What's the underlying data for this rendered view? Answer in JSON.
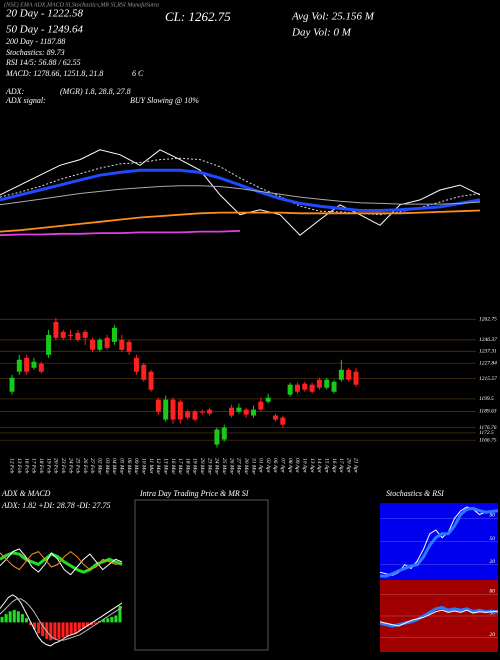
{
  "header": {
    "top_line": "(NSE) EMA ADX,MACD SI,Stochastics,MR SI,RSI MunafaSutra",
    "ema20": "20 Day - 1222.58",
    "ema50": "50 Day - 1249.64",
    "ema200": "200 Day - 1187.88",
    "stoch": "Stochastics: 89.73",
    "rsi": "RSI 14/5: 56.88 / 62.55",
    "macd": "MACD: 1278.66, 1251.8, 21.8",
    "macd_signal": "6 C",
    "cl": "CL: 1262.75",
    "avg_vol": "Avg Vol: 25.156  M",
    "day_vol": "Day Vol: 0  M",
    "adx_label": "ADX:",
    "adx_values": "(MGR) 1.8, 28.8, 27.8",
    "adx_signal_label": "ADX  signal:",
    "adx_signal": "BUY Slowing @ 10%"
  },
  "chart_data": [
    {
      "type": "line",
      "ylim": [
        1150,
        1320
      ],
      "series": [
        {
          "color": "#ffffff",
          "style": "normal",
          "values": [
            1228,
            1242,
            1256,
            1270,
            1278,
            1292,
            1285,
            1270,
            1292,
            1278,
            1263,
            1228,
            1200,
            1207,
            1200,
            1171,
            1193,
            1214,
            1200,
            1185,
            1214,
            1221,
            1235,
            1242,
            1228
          ]
        },
        {
          "color": "#dddddd",
          "style": "dotted",
          "values": [
            1225,
            1232,
            1240,
            1250,
            1258,
            1266,
            1272,
            1274,
            1278,
            1280,
            1278,
            1268,
            1252,
            1238,
            1226,
            1212,
            1205,
            1204,
            1202,
            1200,
            1204,
            1210,
            1218,
            1226,
            1230
          ]
        },
        {
          "color": "#1e4bff",
          "style": "thick",
          "values": [
            1221,
            1228,
            1235,
            1242,
            1249,
            1256,
            1260,
            1263,
            1263,
            1263,
            1260,
            1252,
            1242,
            1232,
            1223,
            1216,
            1212,
            1209,
            1206,
            1206,
            1207,
            1209,
            1211,
            1216,
            1221
          ]
        },
        {
          "color": "#aaaaaa",
          "style": "normal",
          "values": [
            1214,
            1218,
            1222,
            1226,
            1230,
            1233,
            1236,
            1238,
            1240,
            1241,
            1241,
            1240,
            1237,
            1233,
            1229,
            1225,
            1222,
            1219,
            1217,
            1216,
            1215,
            1215,
            1215,
            1216,
            1218
          ]
        },
        {
          "color": "#ff8c1a",
          "style": "medium",
          "values": [
            1176,
            1178,
            1181,
            1184,
            1187,
            1190,
            1193,
            1196,
            1198,
            1200,
            1202,
            1203,
            1203,
            1203,
            1203,
            1202,
            1202,
            1202,
            1202,
            1202,
            1202,
            1203,
            1204,
            1205,
            1206
          ]
        },
        {
          "color": "#e040e0",
          "style": "medium",
          "values": [
            1171,
            1172,
            1172,
            1173,
            1173,
            1174,
            1174,
            1175,
            1175,
            1175,
            1176,
            1176,
            1177,
            null,
            null,
            null,
            null,
            null,
            null,
            null,
            null,
            null,
            null,
            null,
            null
          ]
        }
      ]
    },
    {
      "type": "candlestick",
      "ylim": [
        1155,
        1278
      ],
      "up_color": "#19c819",
      "down_color": "#ff2020",
      "grid_color": "#5a3a10",
      "x": [
        "12 Feb",
        "13 Feb",
        "16 Feb",
        "17 Feb",
        "18 Feb",
        "19 Feb",
        "20 Feb",
        "23 Feb",
        "24 Feb",
        "25 Feb",
        "26 Feb",
        "27 Feb",
        "02 Mar",
        "03 Mar",
        "04 Mar",
        "05 Mar",
        "06 Mar",
        "09 Mar",
        "10 Mar",
        "11 Mar",
        "12 Mar",
        "13 Mar",
        "16 Mar",
        "17 Mar",
        "18 Mar",
        "19 Mar",
        "20 Mar",
        "23 Mar",
        "24 Mar",
        "25 Mar",
        "26 Mar",
        "27 Mar",
        "30 Mar",
        "31 Mar",
        "01 Apr",
        "02 Apr",
        "06 Apr",
        "07 Apr",
        "08 Apr",
        "09 Apr",
        "10 Apr",
        "13 Apr",
        "14 Apr",
        "15 Apr",
        "16 Apr",
        "17 Apr",
        "20 Apr",
        "21 Apr"
      ],
      "open": [
        1205.2,
        1221.1,
        1232.1,
        1224.2,
        1227.4,
        1234.5,
        1260.6,
        1252.7,
        1250.3,
        1251.9,
        1252.7,
        1246.4,
        1238.5,
        1248.0,
        1244.8,
        1246.4,
        1244.8,
        1232.1,
        1226.6,
        1221.1,
        1198.9,
        1183.1,
        1198.9,
        1197.3,
        1189.4,
        1189.4,
        1189.4,
        1191.0,
        1163.3,
        1167.3,
        1192.6,
        1189.4,
        1191.0,
        1186.3,
        1197.3,
        1197.3,
        1186.3,
        1184.7,
        1202.9,
        1210.8,
        1211.6,
        1210.8,
        1214.7,
        1208.4,
        1205.2,
        1214.7,
        1222.6,
        1221.1
      ],
      "high": [
        1218.7,
        1234.5,
        1234.5,
        1232.1,
        1229.0,
        1254.3,
        1263.8,
        1254.3,
        1254.3,
        1254.3,
        1254.3,
        1248.0,
        1248.0,
        1250.3,
        1258.2,
        1250.3,
        1246.4,
        1234.5,
        1228.2,
        1222.6,
        1200.5,
        1202.1,
        1200.5,
        1198.9,
        1191.0,
        1191.0,
        1191.0,
        1192.6,
        1176.8,
        1179.1,
        1195.0,
        1195.8,
        1192.6,
        1194.2,
        1200.5,
        1203.7,
        1187.8,
        1186.3,
        1212.4,
        1212.4,
        1213.1,
        1212.4,
        1216.3,
        1216.3,
        1214.7,
        1230.6,
        1224.2,
        1224.2
      ],
      "low": [
        1202.9,
        1218.7,
        1218.7,
        1222.6,
        1219.5,
        1232.1,
        1246.4,
        1246.4,
        1246.4,
        1244.8,
        1242.4,
        1236.9,
        1236.9,
        1238.5,
        1242.4,
        1236.9,
        1234.5,
        1218.7,
        1213.1,
        1205.2,
        1187.0,
        1181.5,
        1179.9,
        1179.9,
        1183.1,
        1181.5,
        1187.0,
        1186.3,
        1160.9,
        1165.7,
        1184.7,
        1187.8,
        1184.7,
        1184.7,
        1189.4,
        1195.8,
        1181.5,
        1176.8,
        1201.3,
        1203.7,
        1205.2,
        1203.7,
        1206.8,
        1206.8,
        1203.7,
        1213.1,
        1213.1,
        1209.2
      ],
      "close": [
        1216.3,
        1230.6,
        1221.1,
        1229.0,
        1221.1,
        1250.3,
        1248.0,
        1248.0,
        1249.5,
        1246.4,
        1248.0,
        1238.5,
        1246.4,
        1240.0,
        1255.9,
        1238.5,
        1236.9,
        1221.1,
        1214.7,
        1206.8,
        1189.4,
        1198.9,
        1183.1,
        1183.1,
        1184.7,
        1183.1,
        1188.6,
        1187.8,
        1175.2,
        1176.8,
        1186.3,
        1192.6,
        1187.0,
        1191.0,
        1191.0,
        1200.5,
        1183.1,
        1179.1,
        1210.8,
        1205.2,
        1206.8,
        1205.2,
        1208.4,
        1214.7,
        1213.1,
        1222.6,
        1214.7,
        1210.8
      ],
      "yticks": [
        1262.75,
        1246.37,
        1237.31,
        1227.84,
        1215.57,
        1199.5,
        1189.63,
        1176.76,
        1172.5,
        1166.75
      ]
    },
    {
      "type": "line",
      "title": "ADX  & MACD",
      "subtitle": "ADX: 1.82  +DI: 28.78  -DI: 27.75",
      "ylim": [
        10,
        45
      ],
      "series": [
        {
          "color": "#22dd22",
          "style": "thick",
          "values": [
            30,
            33,
            35,
            34,
            30,
            28,
            26,
            30,
            34,
            32,
            28,
            25,
            22,
            20,
            22,
            26,
            28,
            30,
            28,
            26
          ]
        },
        {
          "color": "#ffffff",
          "style": "normal",
          "values": [
            25,
            30,
            36,
            38,
            32,
            24,
            20,
            26,
            35,
            30,
            22,
            18,
            24,
            30,
            34,
            28,
            22,
            26,
            30,
            28
          ]
        },
        {
          "color": "#ff8c1a",
          "style": "normal",
          "values": [
            35,
            30,
            25,
            22,
            28,
            34,
            36,
            30,
            24,
            26,
            32,
            36,
            32,
            26,
            22,
            24,
            30,
            28,
            26,
            27
          ]
        }
      ]
    },
    {
      "type": "macd",
      "ylim": [
        -20,
        22
      ],
      "pos_color": "#22dd22",
      "neg_color": "#ff2020",
      "values": [
        4,
        6,
        8,
        9,
        8,
        6,
        3,
        -2,
        -5,
        -8,
        -10,
        -12,
        -13,
        -12,
        -12,
        -11,
        -10,
        -9,
        -8,
        -6,
        -4,
        -3,
        -2,
        -1,
        1,
        2,
        3,
        4,
        5,
        12
      ],
      "series": [
        {
          "color": "#ffffff",
          "style": "normal",
          "values": [
            10,
            14,
            18,
            20,
            18,
            14,
            8,
            2,
            -4,
            -10,
            -14,
            -16,
            -17,
            -15,
            -14,
            -12,
            -10,
            -9,
            -8,
            -6,
            -4,
            -2,
            0,
            2,
            4,
            6,
            8,
            10,
            12,
            14
          ]
        },
        {
          "color": "#bbbbbb",
          "style": "normal",
          "values": [
            6,
            9,
            12,
            15,
            17,
            17,
            15,
            12,
            8,
            3,
            -2,
            -6,
            -10,
            -12,
            -13,
            -13,
            -12,
            -11,
            -10,
            -9,
            -7,
            -5,
            -3,
            -1,
            1,
            3,
            5,
            7,
            9,
            11
          ]
        }
      ]
    },
    {
      "type": "blank",
      "title": "Intra Day Trading Price & MR  SI"
    },
    {
      "type": "line",
      "title": "Stochastics & RSI",
      "background": "#0000ee",
      "ylim": [
        0,
        100
      ],
      "yticks": [
        80,
        50,
        20
      ],
      "series": [
        {
          "color": "#ffffff",
          "style": "normal",
          "values": [
            10,
            8,
            6,
            10,
            20,
            15,
            25,
            40,
            60,
            65,
            55,
            62,
            80,
            90,
            95,
            92,
            85,
            88,
            90,
            90
          ]
        },
        {
          "color": "#2a7bff",
          "style": "thick",
          "values": [
            5,
            5,
            8,
            12,
            15,
            18,
            20,
            30,
            45,
            55,
            60,
            60,
            70,
            85,
            92,
            93,
            90,
            88,
            89,
            90
          ]
        }
      ]
    },
    {
      "type": "line",
      "background": "#a00000",
      "ylim": [
        0,
        100
      ],
      "yticks": [
        80,
        50,
        20
      ],
      "series": [
        {
          "color": "#2a7bff",
          "style": "thick",
          "values": [
            40,
            38,
            36,
            38,
            40,
            42,
            45,
            50,
            55,
            60,
            62,
            58,
            60,
            58,
            60,
            56,
            58,
            56,
            57,
            55
          ]
        },
        {
          "color": "#ffffff",
          "style": "normal",
          "values": [
            42,
            40,
            38,
            36,
            40,
            44,
            46,
            48,
            52,
            56,
            58,
            55,
            57,
            55,
            58,
            54,
            56,
            55,
            56,
            57
          ]
        }
      ]
    }
  ]
}
